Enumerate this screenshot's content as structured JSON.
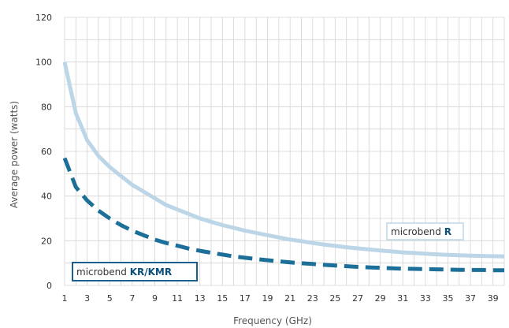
{
  "chart_data": {
    "type": "line",
    "xlabel": "Frequency (GHz)",
    "ylabel": "Average power  (watts)",
    "xlim": [
      1,
      40
    ],
    "ylim": [
      0,
      120
    ],
    "x_ticks": [
      1,
      3,
      5,
      7,
      9,
      11,
      13,
      15,
      17,
      19,
      21,
      23,
      25,
      27,
      29,
      31,
      33,
      35,
      37,
      39
    ],
    "y_ticks": [
      0,
      20,
      40,
      60,
      80,
      100,
      120
    ],
    "grid": true,
    "series": [
      {
        "name": "microbend R",
        "name_parts": [
          "microbend",
          "R"
        ],
        "color": "#bcd6e8",
        "style": "solid",
        "x": [
          1,
          2,
          3,
          4,
          5,
          6,
          7,
          8,
          9,
          10,
          11,
          12,
          13,
          14,
          15,
          16,
          17,
          18,
          19,
          20,
          21,
          22,
          23,
          24,
          25,
          26,
          27,
          28,
          29,
          30,
          31,
          32,
          33,
          34,
          35,
          36,
          37,
          38,
          39,
          40
        ],
        "values": [
          100,
          77,
          65,
          58,
          53,
          49,
          45,
          42,
          39,
          36,
          34,
          32,
          30,
          28.5,
          27,
          25.8,
          24.5,
          23.5,
          22.5,
          21.5,
          20.5,
          19.8,
          19,
          18.3,
          17.7,
          17.1,
          16.6,
          16.1,
          15.6,
          15.2,
          14.8,
          14.5,
          14.2,
          13.9,
          13.7,
          13.5,
          13.3,
          13.2,
          13.1,
          13
        ]
      },
      {
        "name": "microbend KR/KMR",
        "name_parts": [
          "microbend",
          "KR/KMR"
        ],
        "color": "#1b6f98",
        "style": "dashed",
        "x": [
          1,
          2,
          3,
          4,
          5,
          6,
          7,
          8,
          9,
          10,
          11,
          12,
          13,
          14,
          15,
          16,
          17,
          18,
          19,
          20,
          21,
          22,
          23,
          24,
          25,
          26,
          27,
          28,
          29,
          30,
          31,
          32,
          33,
          34,
          35,
          36,
          37,
          38,
          39,
          40
        ],
        "values": [
          57,
          44,
          38,
          33.5,
          30,
          27,
          24.5,
          22.5,
          20.5,
          19,
          17.8,
          16.5,
          15.5,
          14.6,
          13.8,
          13,
          12.4,
          11.8,
          11.3,
          10.8,
          10.3,
          9.9,
          9.6,
          9.2,
          8.9,
          8.6,
          8.3,
          8.1,
          7.9,
          7.7,
          7.5,
          7.4,
          7.3,
          7.2,
          7.1,
          7,
          6.9,
          6.9,
          6.8,
          6.8
        ]
      }
    ]
  }
}
